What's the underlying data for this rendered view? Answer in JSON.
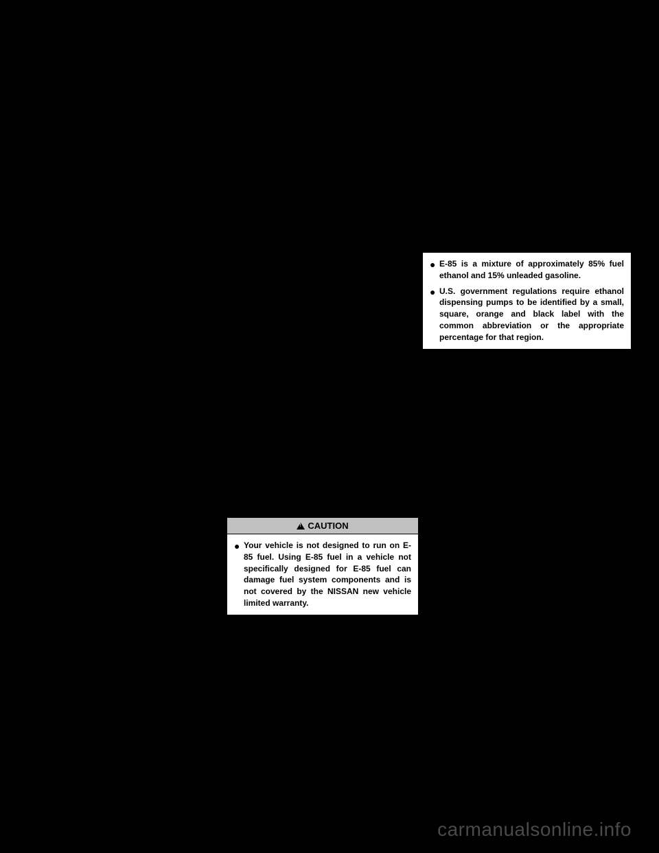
{
  "caution": {
    "header_label": "CAUTION",
    "body_text": "Your vehicle is not designed to run on E-85 fuel. Using E-85 fuel in a vehicle not specifically designed for E-85 fuel can damage fuel system components and is not covered by the NISSAN new vehicle limited warranty."
  },
  "notes": {
    "item1": "E-85 is a mixture of approximately 85% fuel ethanol and 15% unleaded gasoline.",
    "item2": "U.S. government regulations require ethanol dispensing pumps to be identified by a small, square, orange and black label with the common abbreviation or the appropriate percentage for that region."
  },
  "watermark": "carmanualsonline.info"
}
